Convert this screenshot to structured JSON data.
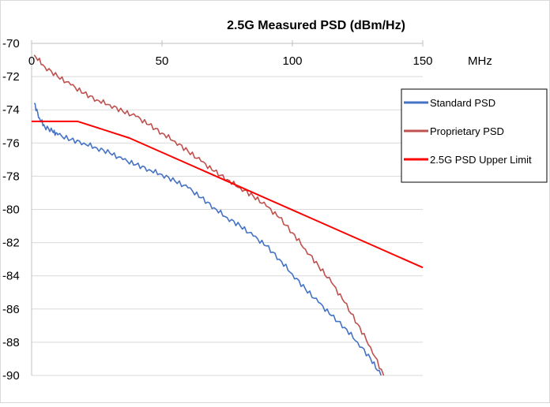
{
  "chart_data": {
    "type": "line",
    "title": "2.5G Measured PSD (dBm/Hz)",
    "xlabel": "MHz",
    "ylabel": "",
    "xlim": [
      0,
      150
    ],
    "ylim": [
      -90,
      -70
    ],
    "x_ticks": [
      0,
      50,
      100,
      150
    ],
    "y_ticks": [
      -70,
      -72,
      -74,
      -76,
      -78,
      -80,
      -82,
      -84,
      -86,
      -88,
      -90
    ],
    "x_tick_labels": [
      "0",
      "50",
      "100",
      "150"
    ],
    "y_tick_labels": [
      "-70",
      "-72",
      "-74",
      "-76",
      "-78",
      "-80",
      "-82",
      "-84",
      "-86",
      "-88",
      "-90"
    ],
    "grid": "horizontal",
    "legend_position": "right",
    "series": [
      {
        "name": "Standard PSD",
        "color": "#4472C4",
        "x": [
          1,
          3,
          5,
          8,
          10,
          15,
          20,
          25,
          30,
          35,
          40,
          45,
          50,
          55,
          60,
          65,
          70,
          75,
          80,
          85,
          90,
          95,
          100,
          105,
          110,
          115,
          120,
          125,
          130,
          134
        ],
        "y": [
          -73.6,
          -74.5,
          -75.0,
          -75.3,
          -75.5,
          -75.8,
          -76.0,
          -76.3,
          -76.6,
          -77.0,
          -77.3,
          -77.6,
          -77.9,
          -78.3,
          -78.7,
          -79.3,
          -79.9,
          -80.5,
          -81.0,
          -81.6,
          -82.2,
          -83.0,
          -83.9,
          -84.8,
          -85.6,
          -86.4,
          -87.1,
          -88.0,
          -89.0,
          -90.0
        ]
      },
      {
        "name": "Proprietary PSD",
        "color": "#C0504D",
        "x": [
          1,
          5,
          10,
          15,
          20,
          25,
          30,
          35,
          40,
          45,
          50,
          55,
          60,
          65,
          70,
          75,
          80,
          85,
          90,
          95,
          100,
          105,
          110,
          115,
          120,
          125,
          130,
          135
        ],
        "y": [
          -70.7,
          -71.4,
          -72.0,
          -72.5,
          -73.0,
          -73.4,
          -73.7,
          -74.1,
          -74.4,
          -74.9,
          -75.4,
          -75.9,
          -76.5,
          -77.1,
          -77.7,
          -78.2,
          -78.7,
          -79.2,
          -79.8,
          -80.5,
          -81.4,
          -82.4,
          -83.4,
          -84.4,
          -85.6,
          -86.9,
          -88.3,
          -90.0
        ]
      },
      {
        "name": "2.5G PSD Upper Limit",
        "color": "#FF0000",
        "x": [
          0,
          17.7,
          37.5,
          150
        ],
        "y": [
          -74.7,
          -74.7,
          -75.7,
          -83.5
        ]
      }
    ]
  }
}
